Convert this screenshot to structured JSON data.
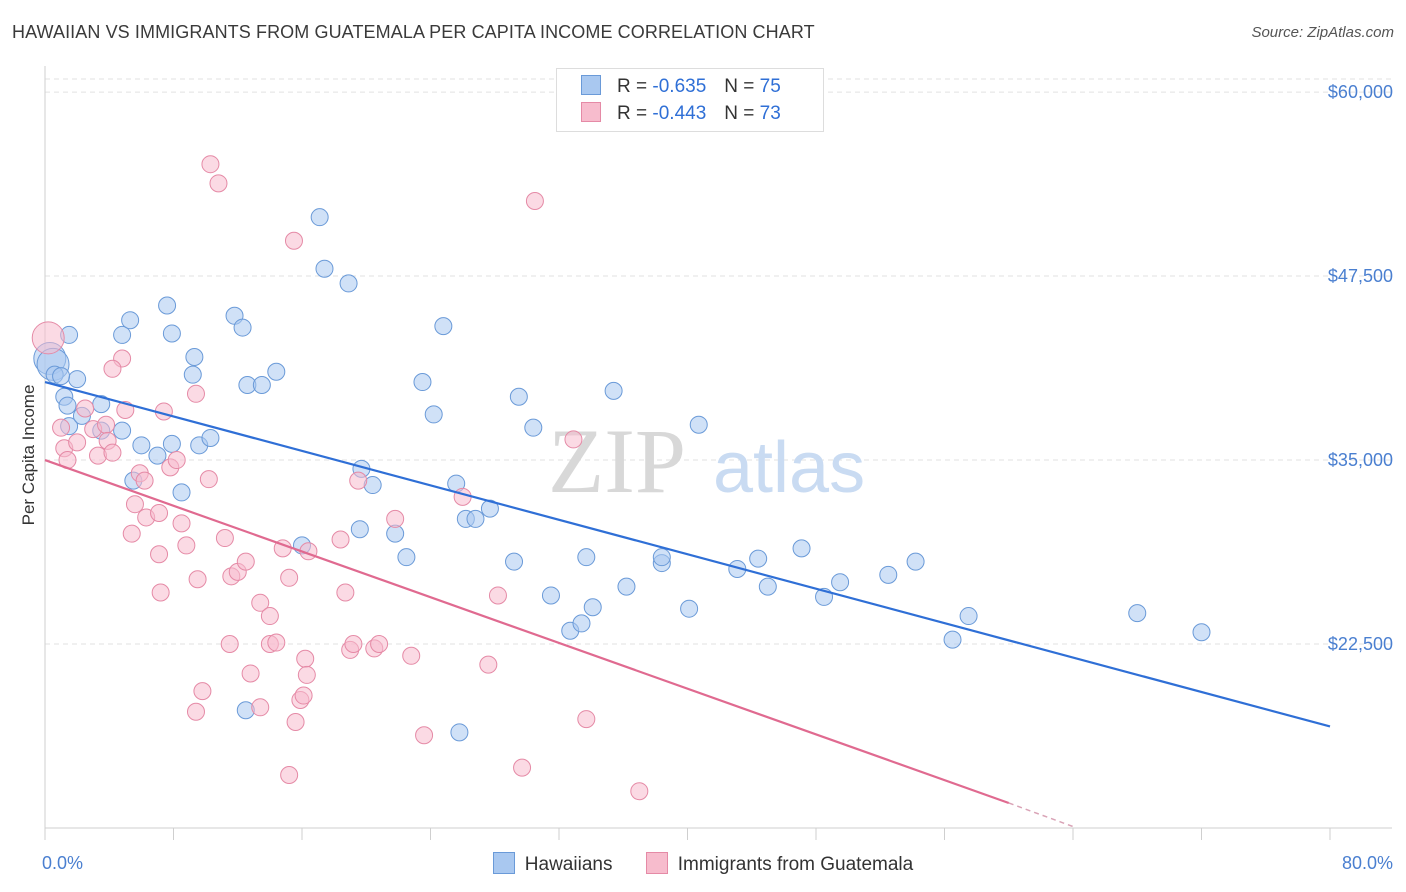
{
  "title": "HAWAIIAN VS IMMIGRANTS FROM GUATEMALA PER CAPITA INCOME CORRELATION CHART",
  "source": "Source: ZipAtlas.com",
  "watermark": {
    "zip": "ZIP",
    "atlas": "atlas"
  },
  "legend": {
    "rows": [
      {
        "r_label": "R =",
        "r_value": "-0.635",
        "n_label": "N =",
        "n_value": "75",
        "color": "#a9c8f0",
        "border": "#6a9ad8"
      },
      {
        "r_label": "R =",
        "r_value": "-0.443",
        "n_label": "N =",
        "n_value": "73",
        "color": "#f7bccd",
        "border": "#e58aa6"
      }
    ]
  },
  "bottom_legend": [
    {
      "label": "Hawaiians",
      "color": "#a9c8f0",
      "border": "#6a9ad8"
    },
    {
      "label": "Immigrants from Guatemala",
      "color": "#f7bccd",
      "border": "#e58aa6"
    }
  ],
  "chart_data": {
    "type": "scatter",
    "title": "HAWAIIAN VS IMMIGRANTS FROM GUATEMALA PER CAPITA INCOME CORRELATION CHART",
    "xlabel": "",
    "ylabel": "Per Capita Income",
    "xlim": [
      0,
      80
    ],
    "ylim": [
      10000,
      61500
    ],
    "x_tick_labels": [
      "0.0%",
      "80.0%"
    ],
    "y_ticks": [
      22500,
      35000,
      47500,
      60000
    ],
    "y_tick_labels": [
      "$22,500",
      "$35,000",
      "$47,500",
      "$60,000"
    ],
    "series": [
      {
        "name": "Hawaiians",
        "color": "#a9c8f0",
        "stroke": "#6a9ad8",
        "trend": {
          "x": [
            0,
            80
          ],
          "y": [
            40300,
            16900
          ],
          "color": "#2f6fd6"
        },
        "points": [
          [
            0.3,
            41900
          ],
          [
            0.5,
            41500
          ],
          [
            0.6,
            40800
          ],
          [
            1.2,
            39300
          ],
          [
            1.4,
            38700
          ],
          [
            1.5,
            37300
          ],
          [
            2.0,
            40500
          ],
          [
            1.5,
            43500
          ],
          [
            3.5,
            38800
          ],
          [
            4.8,
            37000
          ],
          [
            4.8,
            43500
          ],
          [
            5.3,
            44500
          ],
          [
            5.5,
            33600
          ],
          [
            6.0,
            36000
          ],
          [
            7.0,
            35300
          ],
          [
            7.6,
            45500
          ],
          [
            7.9,
            43600
          ],
          [
            7.9,
            36100
          ],
          [
            8.5,
            32800
          ],
          [
            9.2,
            40800
          ],
          [
            9.3,
            42000
          ],
          [
            9.6,
            36000
          ],
          [
            10.3,
            36500
          ],
          [
            11.8,
            44800
          ],
          [
            12.3,
            44000
          ],
          [
            12.6,
            40100
          ],
          [
            13.5,
            40100
          ],
          [
            14.4,
            41000
          ],
          [
            16.0,
            29200
          ],
          [
            17.1,
            51500
          ],
          [
            17.4,
            48000
          ],
          [
            18.9,
            47000
          ],
          [
            19.6,
            30300
          ],
          [
            19.7,
            34400
          ],
          [
            20.4,
            33300
          ],
          [
            21.8,
            30000
          ],
          [
            22.5,
            28400
          ],
          [
            23.5,
            40300
          ],
          [
            24.2,
            38100
          ],
          [
            24.8,
            44100
          ],
          [
            25.6,
            33400
          ],
          [
            26.2,
            31000
          ],
          [
            26.8,
            31000
          ],
          [
            27.7,
            31700
          ],
          [
            29.2,
            28100
          ],
          [
            29.5,
            39300
          ],
          [
            30.4,
            37200
          ],
          [
            31.5,
            25800
          ],
          [
            32.7,
            23400
          ],
          [
            33.4,
            23900
          ],
          [
            33.7,
            28400
          ],
          [
            34.1,
            25000
          ],
          [
            35.4,
            39700
          ],
          [
            36.2,
            26400
          ],
          [
            38.4,
            28000
          ],
          [
            38.4,
            28400
          ],
          [
            40.1,
            24900
          ],
          [
            40.7,
            37400
          ],
          [
            43.1,
            27600
          ],
          [
            44.4,
            28300
          ],
          [
            45.0,
            26400
          ],
          [
            47.1,
            29000
          ],
          [
            48.5,
            25700
          ],
          [
            49.5,
            26700
          ],
          [
            52.5,
            27200
          ],
          [
            54.2,
            28100
          ],
          [
            56.5,
            22800
          ],
          [
            57.5,
            24400
          ],
          [
            68.0,
            24600
          ],
          [
            72.0,
            23300
          ],
          [
            2.3,
            38000
          ],
          [
            3.5,
            37000
          ],
          [
            1.0,
            40700
          ],
          [
            25.8,
            16500
          ],
          [
            12.5,
            18000
          ]
        ]
      },
      {
        "name": "Immigrants from Guatemala",
        "color": "#f7bccd",
        "stroke": "#e58aa6",
        "trend": {
          "x": [
            0,
            60
          ],
          "y": [
            35000,
            11700
          ],
          "dash_to": {
            "x": 64,
            "y": 10100
          },
          "color": "#e06a90"
        },
        "points": [
          [
            0.2,
            43300
          ],
          [
            1.0,
            37200
          ],
          [
            1.2,
            35800
          ],
          [
            1.4,
            35000
          ],
          [
            2.0,
            36200
          ],
          [
            2.5,
            38500
          ],
          [
            3.0,
            37100
          ],
          [
            3.3,
            35300
          ],
          [
            3.8,
            37400
          ],
          [
            3.9,
            36300
          ],
          [
            4.2,
            35500
          ],
          [
            4.8,
            41900
          ],
          [
            5.0,
            38400
          ],
          [
            5.4,
            30000
          ],
          [
            5.9,
            34100
          ],
          [
            6.2,
            33600
          ],
          [
            6.3,
            31100
          ],
          [
            7.1,
            31400
          ],
          [
            7.1,
            28600
          ],
          [
            7.2,
            26000
          ],
          [
            7.8,
            34500
          ],
          [
            8.2,
            35000
          ],
          [
            8.5,
            30700
          ],
          [
            8.8,
            29200
          ],
          [
            9.4,
            39500
          ],
          [
            9.5,
            26900
          ],
          [
            9.4,
            17900
          ],
          [
            9.8,
            19300
          ],
          [
            10.3,
            55100
          ],
          [
            10.8,
            53800
          ],
          [
            11.2,
            29700
          ],
          [
            11.5,
            22500
          ],
          [
            11.6,
            27100
          ],
          [
            12.0,
            27400
          ],
          [
            12.5,
            28100
          ],
          [
            12.8,
            20500
          ],
          [
            13.4,
            25300
          ],
          [
            13.4,
            18200
          ],
          [
            14.0,
            24400
          ],
          [
            14.0,
            22500
          ],
          [
            14.4,
            22600
          ],
          [
            14.8,
            29000
          ],
          [
            15.2,
            27000
          ],
          [
            15.5,
            49900
          ],
          [
            15.2,
            13600
          ],
          [
            15.6,
            17200
          ],
          [
            15.9,
            18700
          ],
          [
            16.1,
            19000
          ],
          [
            16.2,
            21500
          ],
          [
            16.3,
            20400
          ],
          [
            16.4,
            28800
          ],
          [
            18.4,
            29600
          ],
          [
            18.7,
            26000
          ],
          [
            19.0,
            22100
          ],
          [
            19.2,
            22500
          ],
          [
            19.5,
            33600
          ],
          [
            20.5,
            22200
          ],
          [
            20.8,
            22500
          ],
          [
            21.8,
            31000
          ],
          [
            22.8,
            21700
          ],
          [
            23.6,
            16300
          ],
          [
            26.0,
            32500
          ],
          [
            27.6,
            21100
          ],
          [
            28.2,
            25800
          ],
          [
            29.7,
            14100
          ],
          [
            30.5,
            52600
          ],
          [
            32.9,
            36400
          ],
          [
            33.7,
            17400
          ],
          [
            37.0,
            12500
          ],
          [
            7.4,
            38300
          ],
          [
            4.2,
            41200
          ],
          [
            10.2,
            33700
          ],
          [
            5.6,
            32000
          ]
        ]
      }
    ]
  }
}
